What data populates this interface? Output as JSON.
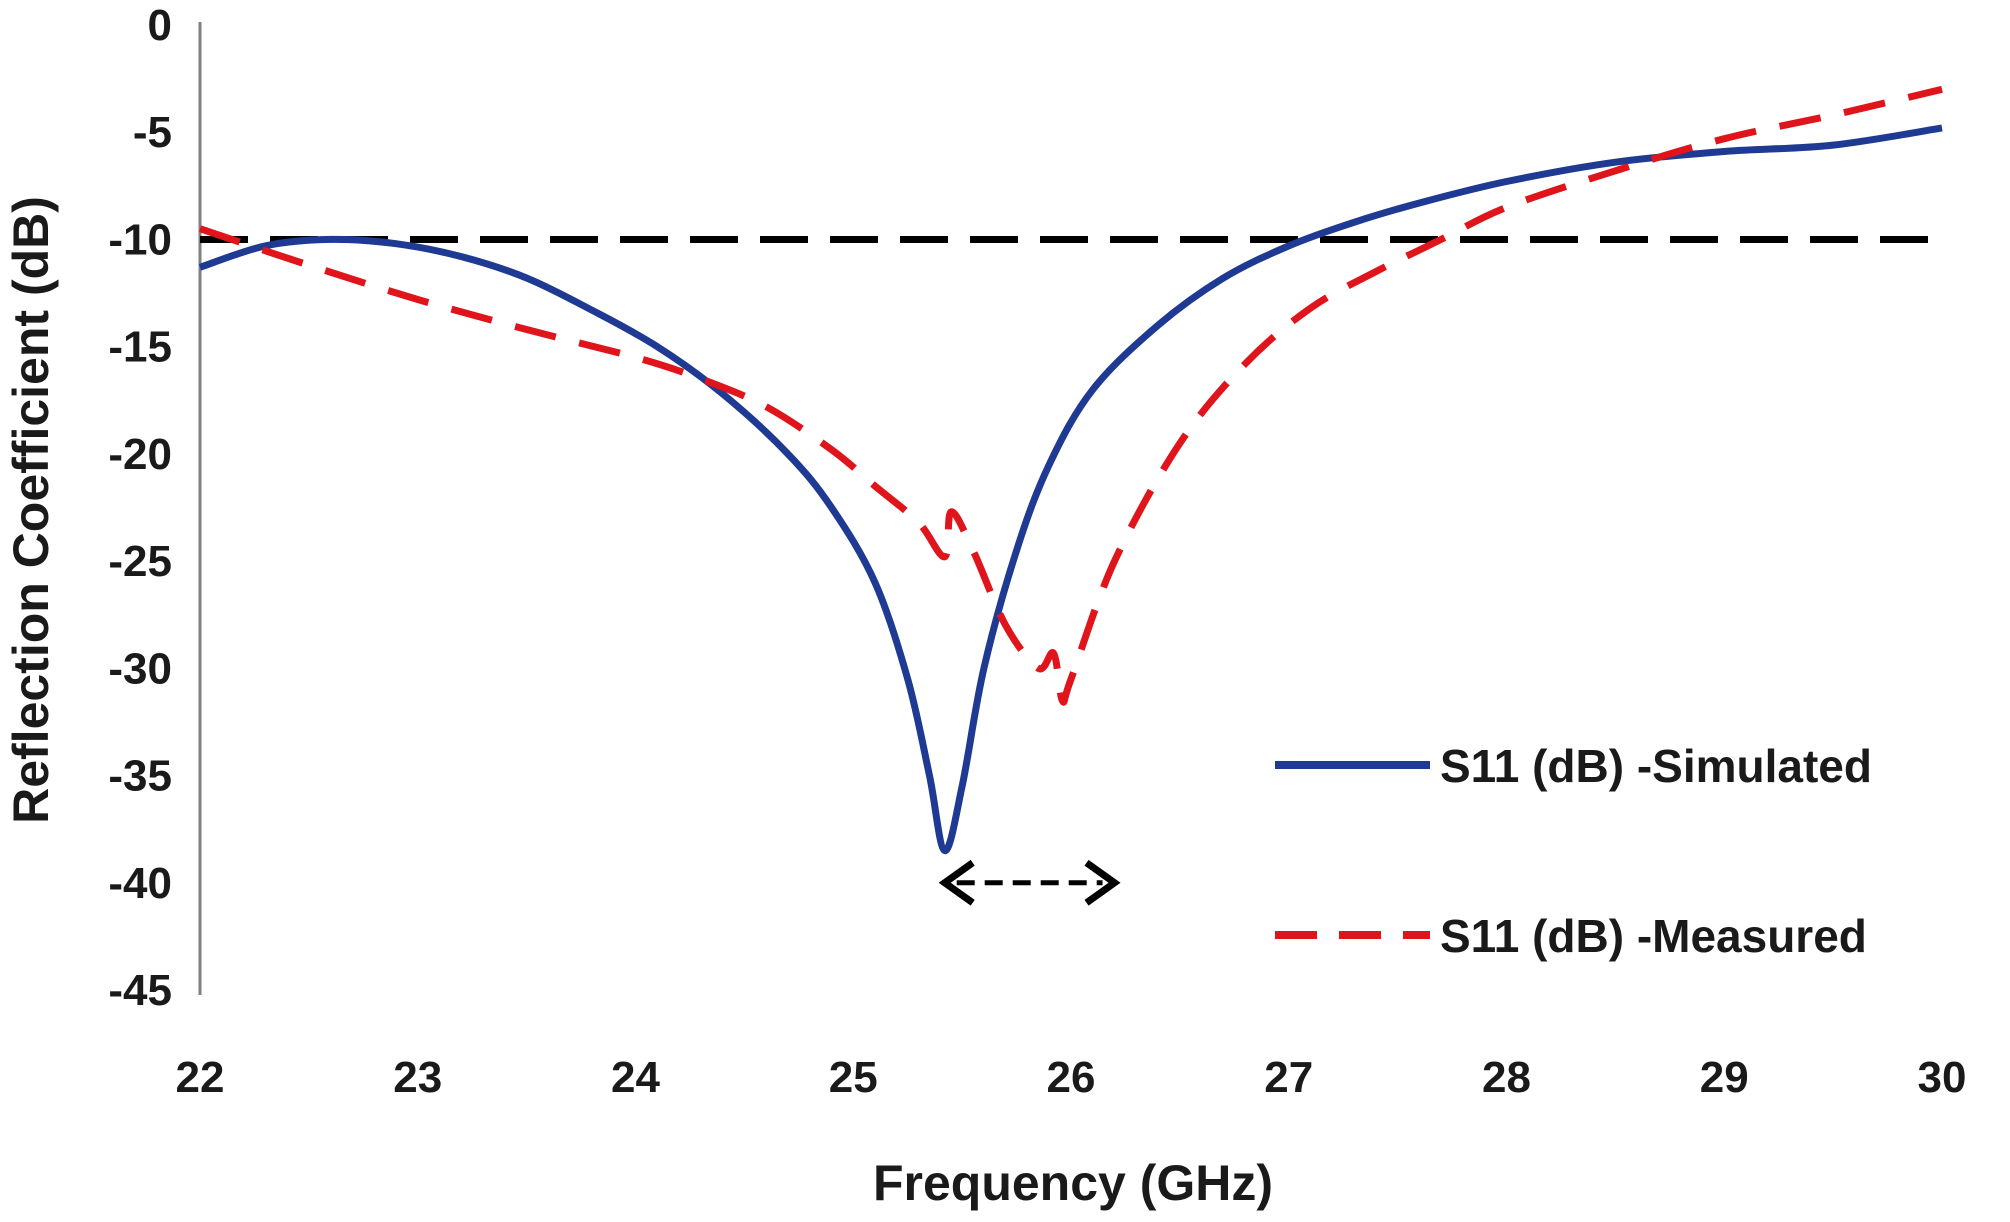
{
  "chart_data": {
    "type": "line",
    "title": "",
    "xlabel": "Frequency (GHz)",
    "ylabel": "Reflection Coefficient (dB)",
    "xlim": [
      22,
      30
    ],
    "ylim": [
      -45,
      0
    ],
    "xticks": [
      "22",
      "23",
      "24",
      "25",
      "26",
      "27",
      "28",
      "29",
      "30"
    ],
    "yticks": [
      "0",
      "-5",
      "-10",
      "-15",
      "-20",
      "-25",
      "-30",
      "-35",
      "-40",
      "-45"
    ],
    "grid": false,
    "legend_position": "lower-right",
    "reference_line": {
      "y": -10,
      "style": "dashed",
      "color": "#000000"
    },
    "annotation": {
      "type": "double-arrow",
      "from_x": 25.42,
      "to_x": 26.2,
      "y": -40
    },
    "series": [
      {
        "name": "S11 (dB) -Simulated",
        "style": "solid",
        "color": "#1f3a93",
        "x": [
          22,
          22.3,
          22.6,
          22.9,
          23.2,
          23.5,
          23.8,
          24.1,
          24.4,
          24.7,
          24.9,
          25.1,
          25.25,
          25.35,
          25.42,
          25.5,
          25.6,
          25.75,
          25.9,
          26.1,
          26.4,
          26.7,
          27,
          27.3,
          27.6,
          28,
          28.5,
          29,
          29.5,
          30
        ],
        "y": [
          -11.3,
          -10.3,
          -10,
          -10.2,
          -10.8,
          -11.8,
          -13.3,
          -15.0,
          -17.2,
          -20.0,
          -22.5,
          -26.0,
          -30.5,
          -35.0,
          -38.5,
          -35.5,
          -30.0,
          -24.5,
          -20.5,
          -17.0,
          -14.0,
          -11.8,
          -10.3,
          -9.2,
          -8.3,
          -7.3,
          -6.4,
          -5.9,
          -5.6,
          -4.8
        ]
      },
      {
        "name": "S11 (dB) -Measured",
        "style": "dashed",
        "color": "#e0141b",
        "x": [
          22,
          22.5,
          23,
          23.5,
          24,
          24.3,
          24.6,
          24.9,
          25.1,
          25.3,
          25.42,
          25.45,
          25.55,
          25.7,
          25.85,
          25.92,
          25.96,
          26.0,
          26.2,
          26.5,
          26.8,
          27.1,
          27.4,
          27.7,
          28,
          28.5,
          29,
          29.5,
          30
        ],
        "y": [
          -9.5,
          -11.2,
          -12.8,
          -14.2,
          -15.5,
          -16.5,
          -17.8,
          -19.8,
          -21.5,
          -23.2,
          -24.8,
          -22.7,
          -24.5,
          -28.0,
          -30.0,
          -29.3,
          -31.5,
          -30.5,
          -25.0,
          -19.5,
          -15.8,
          -13.2,
          -11.5,
          -10.0,
          -8.5,
          -6.8,
          -5.3,
          -4.2,
          -3.0
        ]
      }
    ]
  }
}
